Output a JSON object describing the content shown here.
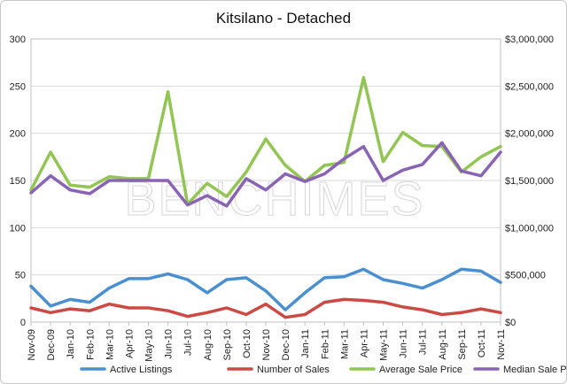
{
  "chart_data": {
    "type": "line",
    "title": "Kitsilano - Detached",
    "watermark": "BENCHIMES",
    "categories": [
      "Nov-09",
      "Dec-09",
      "Jan-10",
      "Feb-10",
      "Mar-10",
      "Apr-10",
      "May-10",
      "Jun-10",
      "Jul-10",
      "Aug-10",
      "Sep-10",
      "Oct-10",
      "Nov-10",
      "Dec-10",
      "Jan-11",
      "Feb-11",
      "Mar-11",
      "Apr-11",
      "May-11",
      "Jun-11",
      "Jul-11",
      "Aug-11",
      "Sep-11",
      "Oct-11",
      "Nov-11"
    ],
    "y_left": {
      "ylim": [
        0,
        300
      ],
      "ticks": [
        0,
        50,
        100,
        150,
        200,
        250,
        300
      ],
      "tick_labels": [
        "0",
        "50",
        "100",
        "150",
        "200",
        "250",
        "300"
      ]
    },
    "y_right": {
      "ylim": [
        0,
        3000000
      ],
      "ticks": [
        0,
        500000,
        1000000,
        1500000,
        2000000,
        2500000,
        3000000
      ],
      "tick_labels": [
        "$0",
        "$500,000",
        "$1,000,000",
        "$1,500,000",
        "$2,000,000",
        "$2,500,000",
        "$3,000,000"
      ]
    },
    "grid": true,
    "legend_position": "bottom",
    "series": [
      {
        "name": "Active Listings",
        "axis": "left",
        "color": "#4a8fd0",
        "values": [
          38,
          17,
          24,
          21,
          36,
          46,
          46,
          51,
          45,
          31,
          45,
          47,
          33,
          13,
          31,
          47,
          48,
          56,
          45,
          41,
          36,
          45,
          56,
          54,
          42
        ]
      },
      {
        "name": "Number of Sales",
        "axis": "left",
        "color": "#cc4a44",
        "values": [
          15,
          10,
          14,
          12,
          19,
          15,
          15,
          12,
          6,
          10,
          15,
          8,
          19,
          5,
          8,
          21,
          24,
          23,
          21,
          16,
          13,
          8,
          10,
          14,
          10
        ]
      },
      {
        "name": "Average Sale Price",
        "axis": "right",
        "color": "#92c553",
        "values": [
          1400000,
          1800000,
          1450000,
          1430000,
          1540000,
          1520000,
          1520000,
          2440000,
          1250000,
          1470000,
          1330000,
          1590000,
          1940000,
          1660000,
          1490000,
          1660000,
          1690000,
          2590000,
          1700000,
          2010000,
          1870000,
          1860000,
          1590000,
          1750000,
          1860000
        ]
      },
      {
        "name": "Median Sale Price",
        "axis": "right",
        "color": "#8a64b4",
        "values": [
          1370000,
          1550000,
          1400000,
          1360000,
          1500000,
          1500000,
          1500000,
          1500000,
          1240000,
          1340000,
          1230000,
          1520000,
          1400000,
          1570000,
          1490000,
          1570000,
          1730000,
          1860000,
          1500000,
          1610000,
          1670000,
          1900000,
          1600000,
          1550000,
          1800000
        ]
      }
    ]
  }
}
